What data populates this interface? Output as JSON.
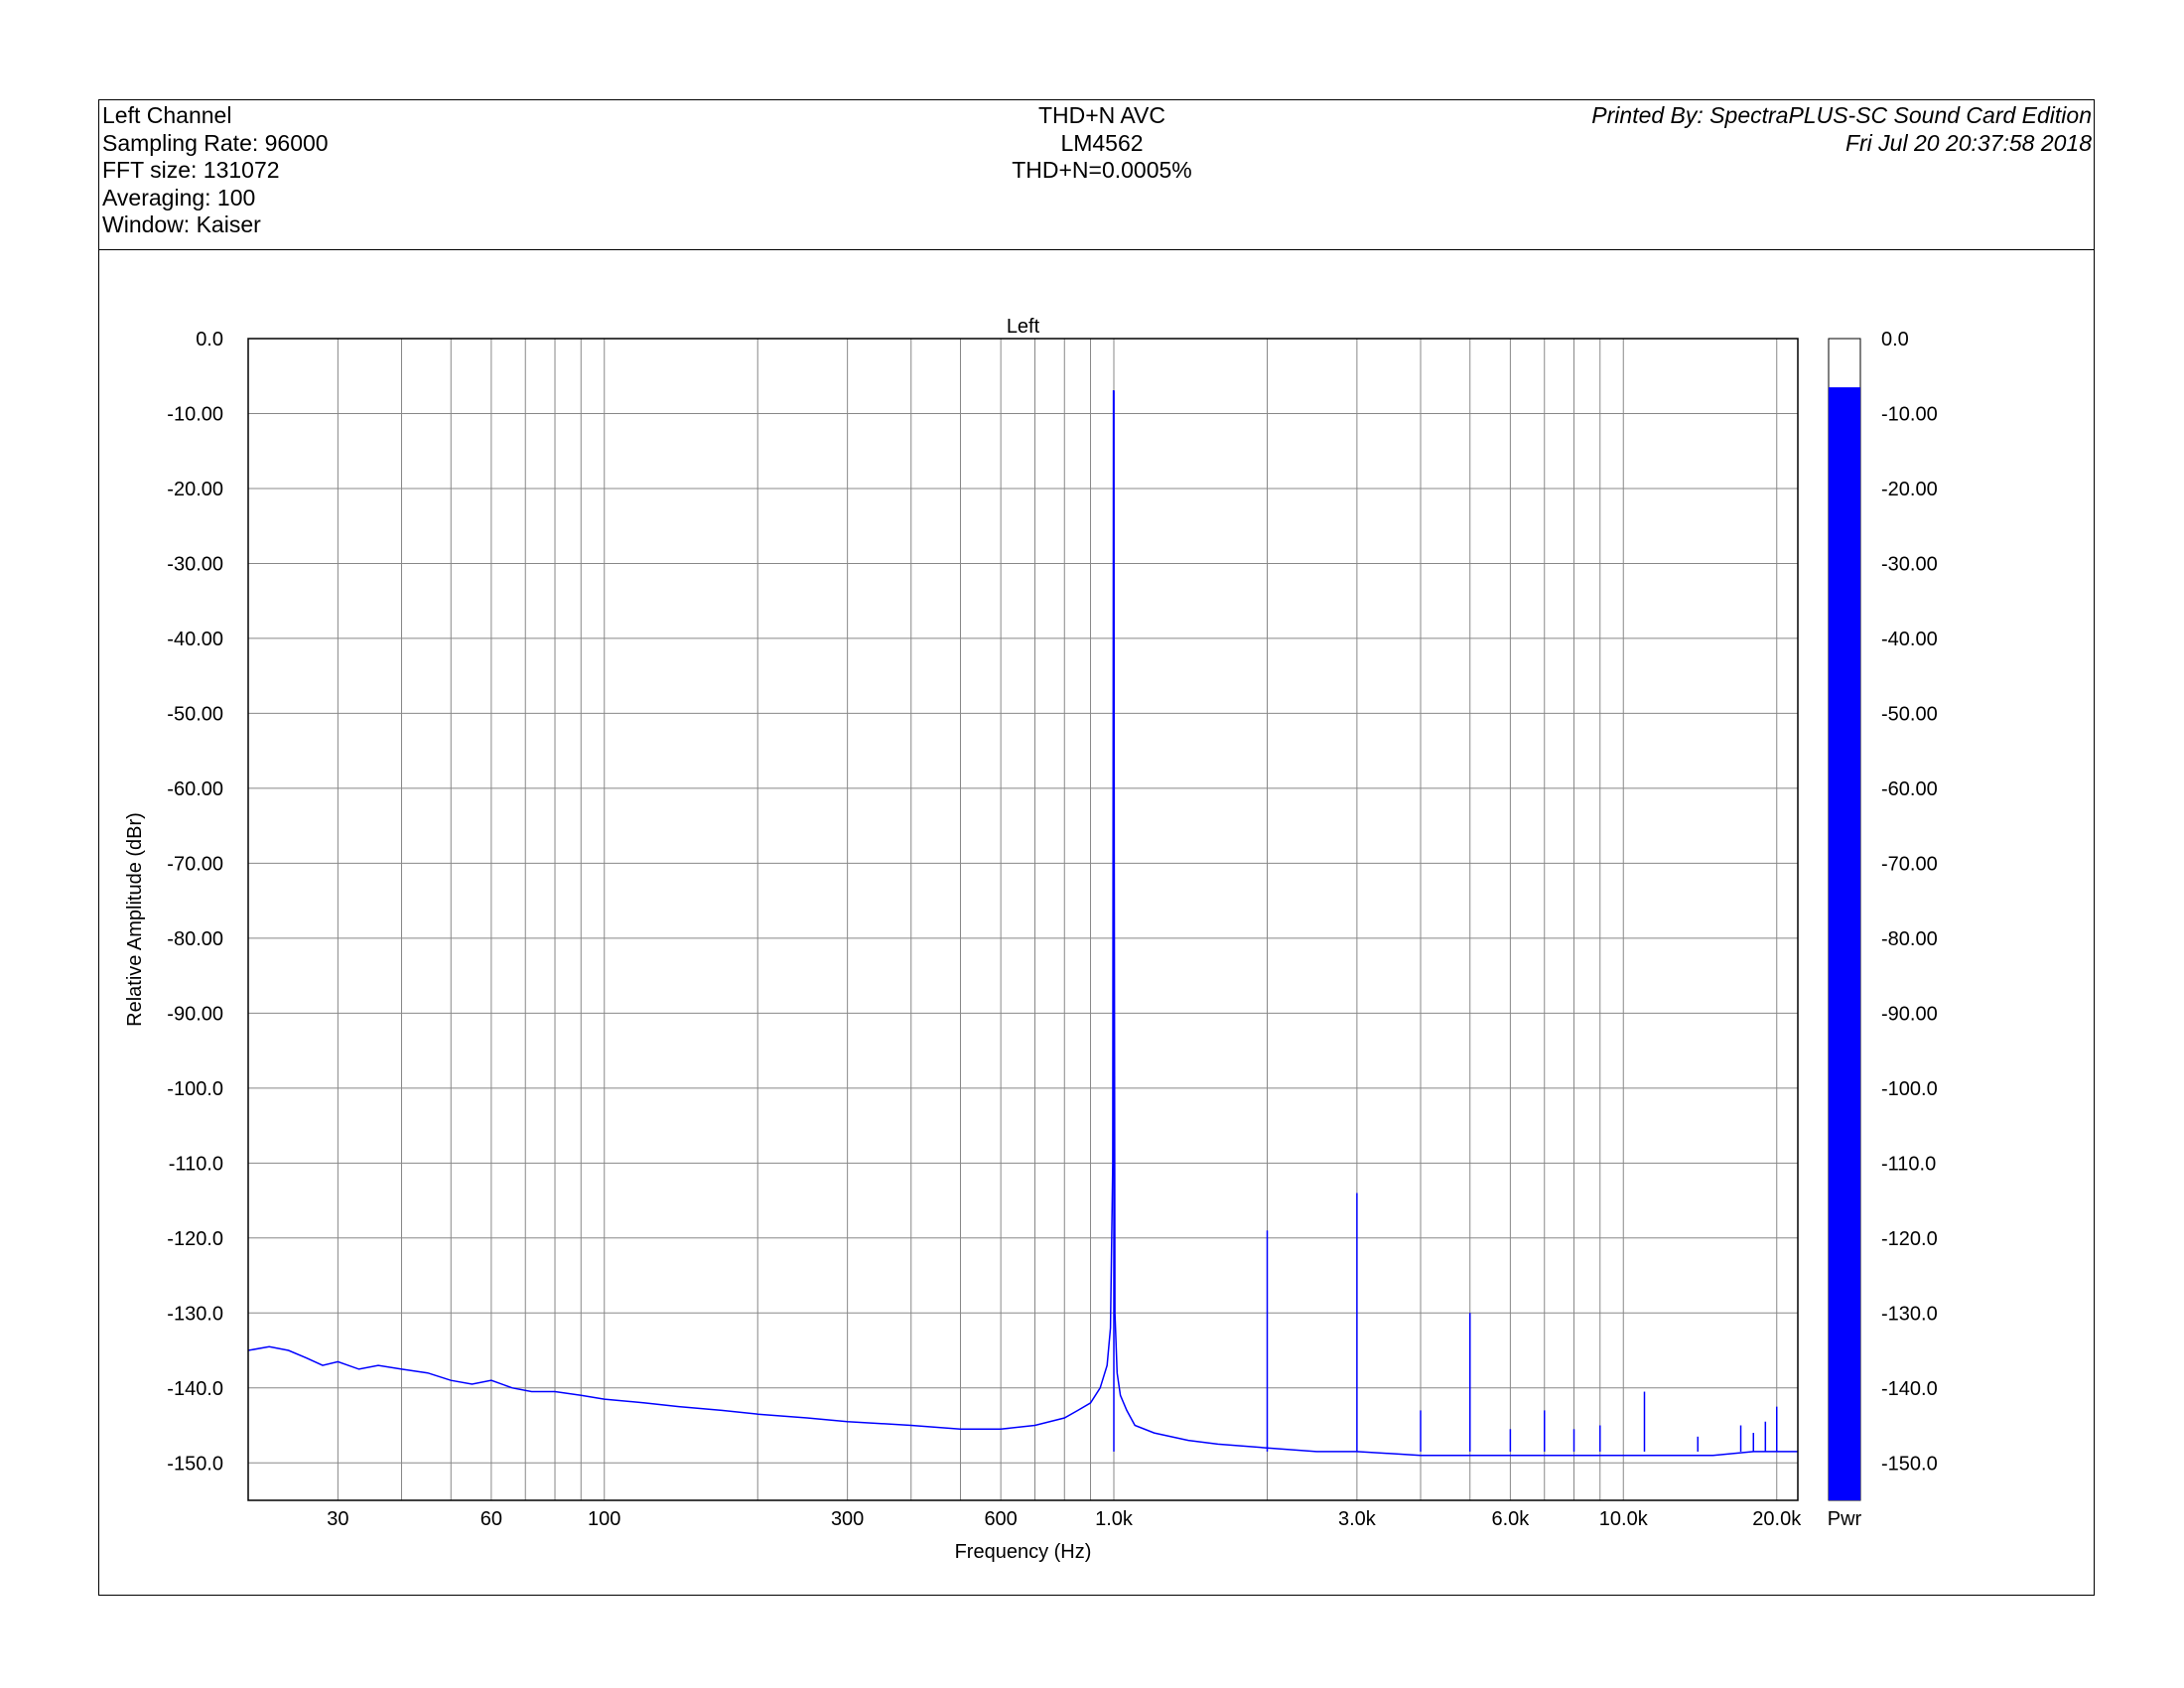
{
  "header": {
    "left": [
      "Left Channel",
      "Sampling Rate: 96000",
      "FFT size: 131072",
      "Averaging: 100",
      "Window: Kaiser"
    ],
    "center": [
      "THD+N AVC",
      "LM4562",
      "THD+N=0.0005%"
    ],
    "right_printed_by": "Printed By: SpectraPLUS-SC Sound Card Edition",
    "right_timestamp": "Fri Jul 20 20:37:58 2018"
  },
  "chart_data": {
    "type": "line",
    "title": "Left",
    "xlabel": "Frequency (Hz)",
    "ylabel": "Relative Amplitude (dBr)",
    "x_scale": "log",
    "xlim": [
      20,
      22000
    ],
    "ylim": [
      -155,
      0
    ],
    "grid": true,
    "line_color": "#0000ff",
    "x_tick_labels": [
      {
        "value": 30,
        "label": "30"
      },
      {
        "value": 60,
        "label": "60"
      },
      {
        "value": 100,
        "label": "100"
      },
      {
        "value": 300,
        "label": "300"
      },
      {
        "value": 600,
        "label": "600"
      },
      {
        "value": 1000,
        "label": "1.0k"
      },
      {
        "value": 3000,
        "label": "3.0k"
      },
      {
        "value": 6000,
        "label": "6.0k"
      },
      {
        "value": 10000,
        "label": "10.0k"
      },
      {
        "value": 20000,
        "label": "20.0k"
      }
    ],
    "x_minor_grid": [
      30,
      40,
      50,
      60,
      70,
      80,
      90,
      100,
      200,
      300,
      400,
      500,
      600,
      700,
      800,
      900,
      1000,
      2000,
      3000,
      4000,
      5000,
      6000,
      7000,
      8000,
      9000,
      10000,
      20000
    ],
    "y_ticks": [
      {
        "value": 0,
        "label": "0.0"
      },
      {
        "value": -10,
        "label": "-10.00"
      },
      {
        "value": -20,
        "label": "-20.00"
      },
      {
        "value": -30,
        "label": "-30.00"
      },
      {
        "value": -40,
        "label": "-40.00"
      },
      {
        "value": -50,
        "label": "-50.00"
      },
      {
        "value": -60,
        "label": "-60.00"
      },
      {
        "value": -70,
        "label": "-70.00"
      },
      {
        "value": -80,
        "label": "-80.00"
      },
      {
        "value": -90,
        "label": "-90.00"
      },
      {
        "value": -100,
        "label": "-100.0"
      },
      {
        "value": -110,
        "label": "-110.0"
      },
      {
        "value": -120,
        "label": "-120.0"
      },
      {
        "value": -130,
        "label": "-130.0"
      },
      {
        "value": -140,
        "label": "-140.0"
      },
      {
        "value": -150,
        "label": "-150.0"
      }
    ],
    "series": [
      {
        "x": [
          20,
          22,
          24,
          26,
          28,
          30,
          33,
          36,
          40,
          45,
          50,
          55,
          60,
          66,
          72,
          80,
          90,
          100,
          120,
          140,
          170,
          200,
          250,
          300,
          400,
          500,
          600,
          700,
          800,
          850,
          900,
          940,
          970,
          985,
          995,
          998,
          1000,
          1002,
          1005,
          1015,
          1030,
          1060,
          1100,
          1200,
          1400,
          1600,
          2000,
          2500,
          3000,
          4000,
          5000,
          6000,
          7000,
          8000,
          10000,
          12000,
          15000,
          18000,
          22000
        ],
        "y": [
          -135,
          -134.5,
          -135,
          -136,
          -137,
          -136.5,
          -137.5,
          -137,
          -137.5,
          -138,
          -139,
          -139.5,
          -139,
          -140,
          -140.5,
          -140.5,
          -141,
          -141.5,
          -142,
          -142.5,
          -143,
          -143.5,
          -144,
          -144.5,
          -145,
          -145.5,
          -145.5,
          -145,
          -144,
          -143,
          -142,
          -140,
          -137,
          -132,
          -110,
          -7,
          -7,
          -69,
          -130,
          -138,
          -141,
          -143,
          -145,
          -146,
          -147,
          -147.5,
          -148,
          -148.5,
          -148.5,
          -149,
          -149,
          -149,
          -149,
          -149,
          -149,
          -149,
          -149,
          -148.5,
          -148.5
        ]
      }
    ],
    "peaks": [
      {
        "x": 1000,
        "y": -7
      },
      {
        "x": 2000,
        "y": -119
      },
      {
        "x": 3000,
        "y": -114
      },
      {
        "x": 4000,
        "y": -143
      },
      {
        "x": 5000,
        "y": -130
      },
      {
        "x": 6000,
        "y": -145.5
      },
      {
        "x": 7000,
        "y": -143
      },
      {
        "x": 8000,
        "y": -145.5
      },
      {
        "x": 9000,
        "y": -145
      },
      {
        "x": 11000,
        "y": -140.5
      },
      {
        "x": 14000,
        "y": -146.5
      },
      {
        "x": 17000,
        "y": -145
      },
      {
        "x": 18000,
        "y": -146
      },
      {
        "x": 19000,
        "y": -144.5
      },
      {
        "x": 20000,
        "y": -142.5
      }
    ],
    "meter": {
      "label": "Pwr",
      "value": -6.5,
      "ylim": [
        -155,
        0
      ],
      "color": "#0000ff",
      "tick_labels": [
        "0.0",
        "-10.00",
        "-20.00",
        "-30.00",
        "-40.00",
        "-50.00",
        "-60.00",
        "-70.00",
        "-80.00",
        "-90.00",
        "-100.0",
        "-110.0",
        "-120.0",
        "-130.0",
        "-140.0",
        "-150.0"
      ]
    }
  }
}
